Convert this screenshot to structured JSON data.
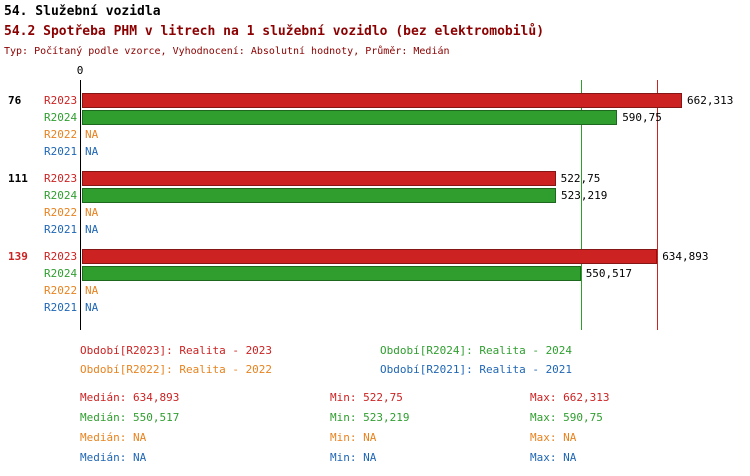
{
  "header": {
    "title1": "54. Služební vozidla",
    "subtitle": "Typ: Počítaný podle vzorce, Vyhodnocení: Absolutní hodnoty, Průměr: Medián"
  },
  "colors": {
    "black": "#000000",
    "title_red": "#8b0000",
    "red": "#cc2222",
    "green": "#2f9e2f",
    "orange": "#e8821e",
    "blue": "#1f66b4"
  },
  "chart_data": {
    "type": "bar",
    "orientation": "horizontal",
    "title": "54.2 Spotřeba PHM v litrech na 1 služební vozidlo (bez elektromobilů)",
    "origin_label": "0",
    "xlim": [
      0,
      737
    ],
    "grid": false,
    "legend_position": "bottom",
    "series": [
      "R2023",
      "R2024",
      "R2022",
      "R2021"
    ],
    "groups": [
      {
        "label": "76",
        "label_color": "black",
        "bars": [
          {
            "series": "R2023",
            "color": "red",
            "value": 662.313,
            "value_label": "662,313"
          },
          {
            "series": "R2024",
            "color": "green",
            "value": 590.75,
            "value_label": "590,75"
          },
          {
            "series": "R2022",
            "color": "orange",
            "value": null,
            "value_label": "NA"
          },
          {
            "series": "R2021",
            "color": "blue",
            "value": null,
            "value_label": "NA"
          }
        ]
      },
      {
        "label": "111",
        "label_color": "black",
        "bars": [
          {
            "series": "R2023",
            "color": "red",
            "value": 522.75,
            "value_label": "522,75"
          },
          {
            "series": "R2024",
            "color": "green",
            "value": 523.219,
            "value_label": "523,219"
          },
          {
            "series": "R2022",
            "color": "orange",
            "value": null,
            "value_label": "NA"
          },
          {
            "series": "R2021",
            "color": "blue",
            "value": null,
            "value_label": "NA"
          }
        ]
      },
      {
        "label": "139",
        "label_color": "red",
        "bars": [
          {
            "series": "R2023",
            "color": "red",
            "value": 634.893,
            "value_label": "634,893"
          },
          {
            "series": "R2024",
            "color": "green",
            "value": 550.517,
            "value_label": "550,517"
          },
          {
            "series": "R2022",
            "color": "orange",
            "value": null,
            "value_label": "NA"
          },
          {
            "series": "R2021",
            "color": "blue",
            "value": null,
            "value_label": "NA"
          }
        ]
      }
    ],
    "reference_lines": [
      {
        "series": "R2023",
        "color": "red",
        "value": 634.893
      },
      {
        "series": "R2024",
        "color": "green",
        "value": 550.517
      }
    ]
  },
  "legend": {
    "rows": [
      [
        {
          "series": "R2023",
          "color": "red",
          "text": "Období[R2023]: Realita - 2023"
        },
        {
          "series": "R2024",
          "color": "green",
          "text": "Období[R2024]: Realita - 2024"
        }
      ],
      [
        {
          "series": "R2022",
          "color": "orange",
          "text": "Období[R2022]: Realita - 2022"
        },
        {
          "series": "R2021",
          "color": "blue",
          "text": "Období[R2021]: Realita - 2021"
        }
      ]
    ]
  },
  "stats": {
    "rows": [
      {
        "series": "R2023",
        "color": "red",
        "median": "Medián: 634,893",
        "min": "Min: 522,75",
        "max": "Max: 662,313"
      },
      {
        "series": "R2024",
        "color": "green",
        "median": "Medián: 550,517",
        "min": "Min: 523,219",
        "max": "Max: 590,75"
      },
      {
        "series": "R2022",
        "color": "orange",
        "median": "Medián: NA",
        "min": "Min: NA",
        "max": "Max: NA"
      },
      {
        "series": "R2021",
        "color": "blue",
        "median": "Medián: NA",
        "min": "Min: NA",
        "max": "Max: NA"
      }
    ]
  }
}
